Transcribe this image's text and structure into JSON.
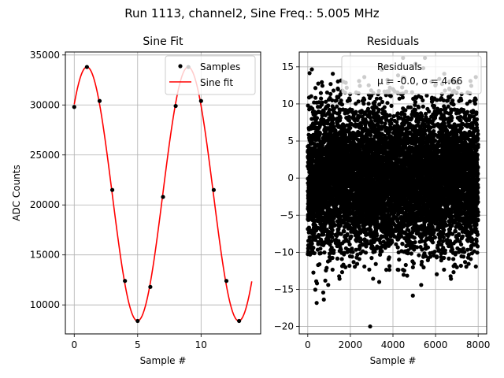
{
  "figure": {
    "suptitle": "Run 1113, channel2, Sine Freq.: 5.005 MHz"
  },
  "chart_data": [
    {
      "type": "line",
      "title": "Sine Fit",
      "xlabel": "Sample #",
      "ylabel": "ADC Counts",
      "xlim": [
        -0.7,
        14.7
      ],
      "ylim": [
        7100,
        35300
      ],
      "xticks": [
        0,
        5,
        10
      ],
      "yticks": [
        10000,
        15000,
        20000,
        25000,
        30000,
        35000
      ],
      "grid": true,
      "legend": "top-right",
      "samples": {
        "name": "Samples",
        "color": "#000000",
        "x": [
          0,
          1,
          2,
          3,
          4,
          5,
          6,
          7,
          8,
          9,
          10,
          11,
          12,
          13
        ],
        "y": [
          29800,
          33800,
          30400,
          21500,
          12400,
          8400,
          11800,
          20800,
          29900,
          33800,
          30400,
          21500,
          12400,
          8400
        ]
      },
      "fit": {
        "name": "Sine fit",
        "color": "#ff0000",
        "amplitude": 12700,
        "offset": 21100,
        "period": 7.98,
        "phase_sample": 1.0,
        "x_range": [
          0,
          14
        ]
      }
    },
    {
      "type": "scatter",
      "title": "Residuals",
      "xlabel": "Sample #",
      "xlim": [
        -400,
        8400
      ],
      "ylim": [
        -21,
        17
      ],
      "xticks": [
        0,
        2000,
        4000,
        6000,
        8000
      ],
      "yticks": [
        -20,
        -15,
        -10,
        -5,
        0,
        5,
        10,
        15
      ],
      "grid": true,
      "legend": "top-right",
      "legend_title": "Residuals",
      "legend_stats": "μ = -0.0, σ = 4.66",
      "residuals": {
        "color": "#000000",
        "n_points": 8000,
        "mean": 0.0,
        "std": 4.66
      }
    }
  ]
}
